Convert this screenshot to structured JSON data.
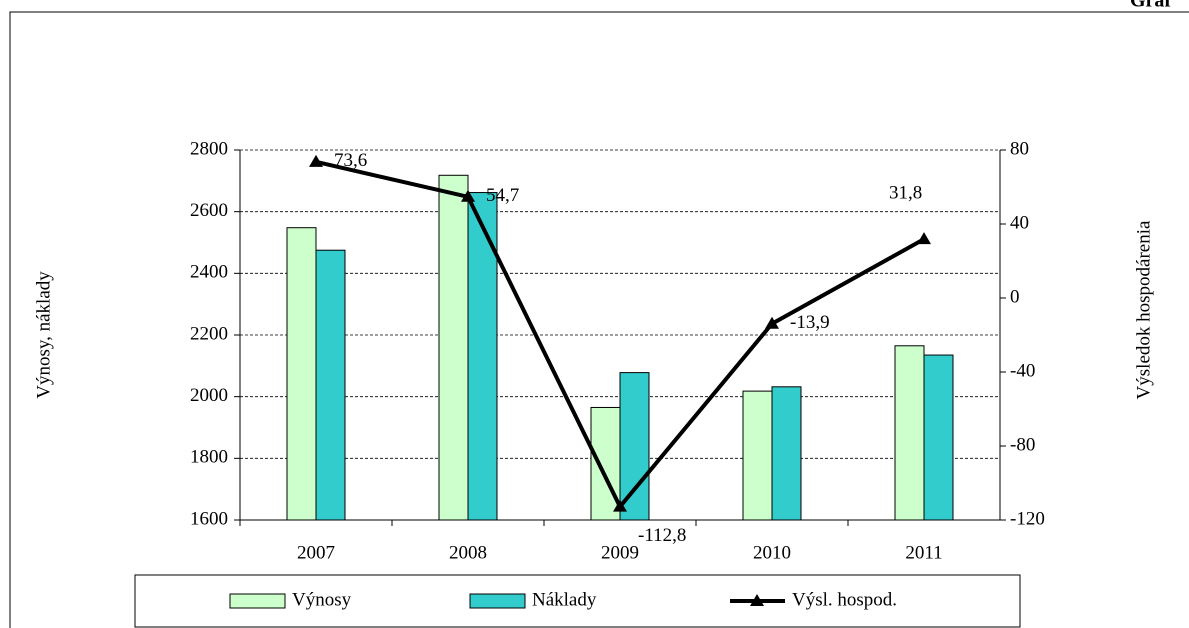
{
  "chart_data": {
    "type": "bar",
    "title": "Graf",
    "categories": [
      "2007",
      "2008",
      "2009",
      "2010",
      "2011"
    ],
    "ylabel": "Výnosy, náklady",
    "y2label": "Výsledok hospodárenia",
    "ylim": [
      1600,
      2800
    ],
    "yticks": [
      1600,
      1800,
      2000,
      2200,
      2400,
      2600,
      2800
    ],
    "y2lim": [
      -120,
      80
    ],
    "y2ticks": [
      -120,
      -80,
      -40,
      0,
      40,
      80
    ],
    "grid": true,
    "legend": "bottom",
    "series": [
      {
        "name": "Výnosy",
        "type": "bar",
        "color": "#ccffcc",
        "values": [
          2548,
          2718,
          1965,
          2018,
          2165
        ]
      },
      {
        "name": "Náklady",
        "type": "bar",
        "color": "#33cccc",
        "values": [
          2475,
          2662,
          2078,
          2032,
          2135
        ]
      },
      {
        "name": "Výsl. hospod.",
        "type": "line",
        "axis": "y2",
        "color": "#000000",
        "values": [
          73.6,
          54.7,
          -112.8,
          -13.9,
          31.8
        ],
        "value_labels": [
          "73,6",
          "54,7",
          "-112,8",
          "-13,9",
          "31,8"
        ]
      }
    ]
  }
}
